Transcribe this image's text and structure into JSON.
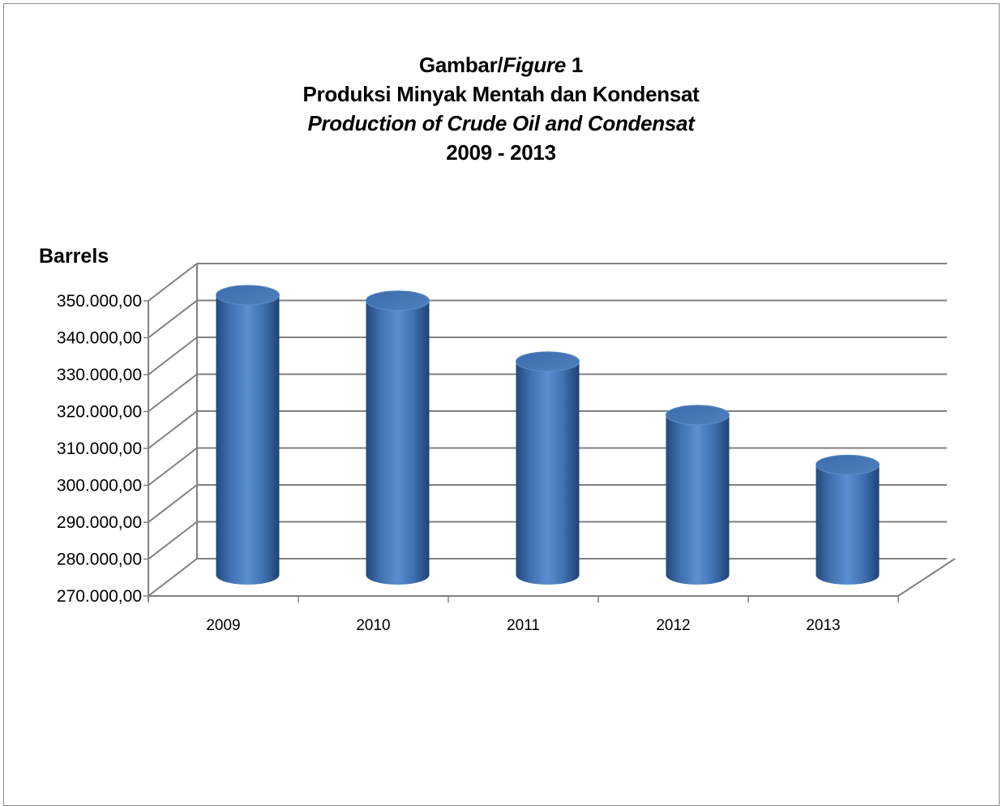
{
  "chart_data": {
    "type": "bar",
    "title_lines": [
      {
        "parts": [
          {
            "text": "Gambar/",
            "italic": false
          },
          {
            "text": "Figure",
            "italic": true
          },
          {
            "text": " 1",
            "italic": false
          }
        ]
      },
      {
        "parts": [
          {
            "text": "Produksi Minyak Mentah dan Kondensat",
            "italic": false
          }
        ]
      },
      {
        "parts": [
          {
            "text": "Production of Crude Oil and Condensat",
            "italic": true
          }
        ]
      },
      {
        "parts": [
          {
            "text": "2009 - 2013",
            "italic": false
          }
        ]
      }
    ],
    "ylabel": "Barrels",
    "xlabel": "",
    "categories": [
      "2009",
      "2010",
      "2011",
      "2012",
      "2013"
    ],
    "values": [
      346500,
      345000,
      328500,
      314000,
      300500
    ],
    "ylim": [
      270000,
      350000
    ],
    "y_ticks": [
      {
        "value": 270000,
        "label": "270.000,00"
      },
      {
        "value": 280000,
        "label": "280.000,00"
      },
      {
        "value": 290000,
        "label": "290.000,00"
      },
      {
        "value": 300000,
        "label": "300.000,00"
      },
      {
        "value": 310000,
        "label": "310.000,00"
      },
      {
        "value": 320000,
        "label": "320.000,00"
      },
      {
        "value": 330000,
        "label": "330.000,00"
      },
      {
        "value": 340000,
        "label": "340.000,00"
      },
      {
        "value": 350000,
        "label": "350.000,00"
      }
    ],
    "style": "3d-cylinder",
    "grid": true,
    "legend": "none",
    "colors": {
      "bar": "#4f81bd",
      "bar_dark": "#23497e",
      "bar_light": "#8db3e2",
      "grid": "#808080"
    }
  }
}
